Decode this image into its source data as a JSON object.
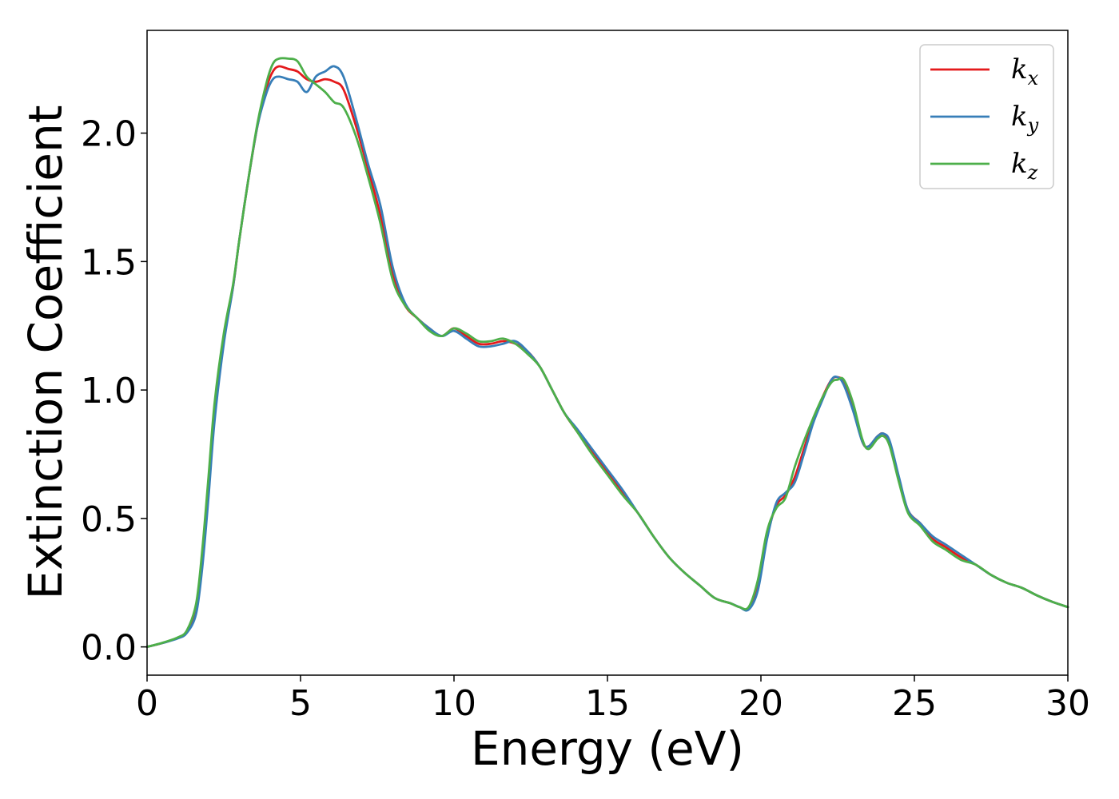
{
  "chart_data": {
    "type": "line",
    "title": "",
    "xlabel": "Energy (eV)",
    "ylabel": "Extinction Coefficient",
    "xlim": [
      0,
      30
    ],
    "ylim": [
      -0.11,
      2.4
    ],
    "xticks": [
      0,
      5,
      10,
      15,
      20,
      25,
      30
    ],
    "xtick_labels": [
      "0",
      "5",
      "10",
      "15",
      "20",
      "25",
      "30"
    ],
    "yticks": [
      0.0,
      0.5,
      1.0,
      1.5,
      2.0
    ],
    "ytick_labels": [
      "0.0",
      "0.5",
      "1.0",
      "1.5",
      "2.0"
    ],
    "grid": false,
    "legend_position": "top-right",
    "series": [
      {
        "name": "k",
        "subscript": "x",
        "color": "#e41a1c",
        "x": [
          0,
          0.5,
          1.0,
          1.3,
          1.6,
          1.8,
          2.0,
          2.2,
          2.5,
          2.8,
          3.0,
          3.3,
          3.6,
          3.9,
          4.1,
          4.3,
          4.6,
          4.9,
          5.2,
          5.5,
          5.8,
          6.1,
          6.4,
          6.8,
          7.2,
          7.6,
          8.0,
          8.4,
          8.8,
          9.2,
          9.6,
          10.0,
          10.4,
          10.8,
          11.2,
          11.6,
          12.0,
          12.4,
          12.8,
          13.2,
          13.6,
          14.0,
          14.5,
          15.0,
          15.5,
          16.0,
          16.5,
          17.0,
          17.5,
          18.0,
          18.5,
          19.0,
          19.3,
          19.6,
          19.9,
          20.2,
          20.5,
          20.8,
          21.1,
          21.4,
          21.7,
          22.0,
          22.3,
          22.5,
          22.7,
          23.0,
          23.3,
          23.5,
          23.8,
          24.0,
          24.2,
          24.5,
          24.8,
          25.2,
          25.6,
          26.0,
          26.5,
          27.0,
          27.5,
          28.0,
          28.5,
          29.0,
          29.5,
          30.0
        ],
        "values": [
          0.0,
          0.015,
          0.035,
          0.06,
          0.15,
          0.35,
          0.62,
          0.92,
          1.2,
          1.4,
          1.58,
          1.82,
          2.03,
          2.18,
          2.24,
          2.26,
          2.25,
          2.24,
          2.21,
          2.2,
          2.21,
          2.2,
          2.17,
          2.03,
          1.86,
          1.68,
          1.45,
          1.33,
          1.28,
          1.24,
          1.21,
          1.24,
          1.21,
          1.18,
          1.18,
          1.19,
          1.18,
          1.15,
          1.09,
          1.0,
          0.91,
          0.84,
          0.76,
          0.68,
          0.6,
          0.52,
          0.43,
          0.35,
          0.29,
          0.24,
          0.19,
          0.17,
          0.155,
          0.15,
          0.24,
          0.43,
          0.55,
          0.59,
          0.66,
          0.77,
          0.88,
          0.97,
          1.04,
          1.05,
          1.03,
          0.93,
          0.8,
          0.78,
          0.82,
          0.83,
          0.79,
          0.65,
          0.53,
          0.48,
          0.42,
          0.39,
          0.35,
          0.32,
          0.28,
          0.25,
          0.23,
          0.2,
          0.175,
          0.155
        ]
      },
      {
        "name": "k",
        "subscript": "y",
        "color": "#377eb8",
        "x": [
          0,
          0.5,
          1.0,
          1.3,
          1.6,
          1.8,
          2.0,
          2.2,
          2.5,
          2.8,
          3.0,
          3.3,
          3.6,
          3.9,
          4.1,
          4.3,
          4.6,
          4.9,
          5.2,
          5.5,
          5.8,
          6.1,
          6.4,
          6.8,
          7.2,
          7.6,
          8.0,
          8.4,
          8.8,
          9.2,
          9.6,
          10.0,
          10.4,
          10.8,
          11.2,
          11.6,
          12.0,
          12.4,
          12.8,
          13.2,
          13.6,
          14.0,
          14.5,
          15.0,
          15.5,
          16.0,
          16.5,
          17.0,
          17.5,
          18.0,
          18.5,
          19.0,
          19.3,
          19.6,
          19.9,
          20.2,
          20.5,
          20.8,
          21.1,
          21.4,
          21.7,
          22.0,
          22.3,
          22.5,
          22.7,
          23.0,
          23.3,
          23.5,
          23.8,
          24.0,
          24.2,
          24.5,
          24.8,
          25.2,
          25.6,
          26.0,
          26.5,
          27.0,
          27.5,
          28.0,
          28.5,
          29.0,
          29.5,
          30.0
        ],
        "values": [
          0.0,
          0.015,
          0.033,
          0.055,
          0.13,
          0.31,
          0.58,
          0.88,
          1.18,
          1.4,
          1.58,
          1.82,
          2.03,
          2.16,
          2.21,
          2.22,
          2.21,
          2.2,
          2.16,
          2.22,
          2.24,
          2.26,
          2.22,
          2.06,
          1.88,
          1.72,
          1.48,
          1.34,
          1.28,
          1.24,
          1.21,
          1.23,
          1.2,
          1.17,
          1.17,
          1.18,
          1.19,
          1.15,
          1.09,
          1.0,
          0.91,
          0.85,
          0.77,
          0.69,
          0.61,
          0.52,
          0.43,
          0.35,
          0.29,
          0.24,
          0.19,
          0.17,
          0.155,
          0.145,
          0.22,
          0.42,
          0.56,
          0.6,
          0.64,
          0.75,
          0.87,
          0.96,
          1.04,
          1.05,
          1.02,
          0.92,
          0.8,
          0.78,
          0.82,
          0.83,
          0.8,
          0.66,
          0.53,
          0.48,
          0.43,
          0.4,
          0.36,
          0.32,
          0.28,
          0.25,
          0.23,
          0.2,
          0.175,
          0.155
        ]
      },
      {
        "name": "k",
        "subscript": "z",
        "color": "#4daf4a",
        "x": [
          0,
          0.5,
          1.0,
          1.3,
          1.6,
          1.8,
          2.0,
          2.2,
          2.5,
          2.8,
          3.0,
          3.3,
          3.6,
          3.9,
          4.1,
          4.3,
          4.6,
          4.9,
          5.2,
          5.5,
          5.8,
          6.1,
          6.4,
          6.8,
          7.2,
          7.6,
          8.0,
          8.4,
          8.8,
          9.2,
          9.6,
          10.0,
          10.4,
          10.8,
          11.2,
          11.6,
          12.0,
          12.4,
          12.8,
          13.2,
          13.6,
          14.0,
          14.5,
          15.0,
          15.5,
          16.0,
          16.5,
          17.0,
          17.5,
          18.0,
          18.5,
          19.0,
          19.3,
          19.6,
          19.9,
          20.2,
          20.5,
          20.8,
          21.1,
          21.4,
          21.7,
          22.0,
          22.3,
          22.5,
          22.7,
          23.0,
          23.3,
          23.5,
          23.8,
          24.0,
          24.2,
          24.5,
          24.8,
          25.2,
          25.6,
          26.0,
          26.5,
          27.0,
          27.5,
          28.0,
          28.5,
          29.0,
          29.5,
          30.0
        ],
        "values": [
          0.0,
          0.016,
          0.037,
          0.065,
          0.17,
          0.38,
          0.66,
          0.95,
          1.22,
          1.41,
          1.58,
          1.82,
          2.04,
          2.2,
          2.27,
          2.29,
          2.29,
          2.28,
          2.22,
          2.19,
          2.16,
          2.12,
          2.1,
          1.99,
          1.83,
          1.65,
          1.43,
          1.33,
          1.28,
          1.23,
          1.21,
          1.24,
          1.22,
          1.19,
          1.19,
          1.2,
          1.18,
          1.14,
          1.09,
          1.0,
          0.91,
          0.84,
          0.75,
          0.67,
          0.59,
          0.52,
          0.43,
          0.35,
          0.29,
          0.24,
          0.19,
          0.17,
          0.155,
          0.155,
          0.26,
          0.45,
          0.54,
          0.58,
          0.7,
          0.8,
          0.89,
          0.97,
          1.03,
          1.04,
          1.04,
          0.95,
          0.81,
          0.77,
          0.81,
          0.82,
          0.78,
          0.64,
          0.52,
          0.47,
          0.41,
          0.38,
          0.34,
          0.32,
          0.28,
          0.25,
          0.23,
          0.2,
          0.175,
          0.155
        ]
      }
    ]
  }
}
